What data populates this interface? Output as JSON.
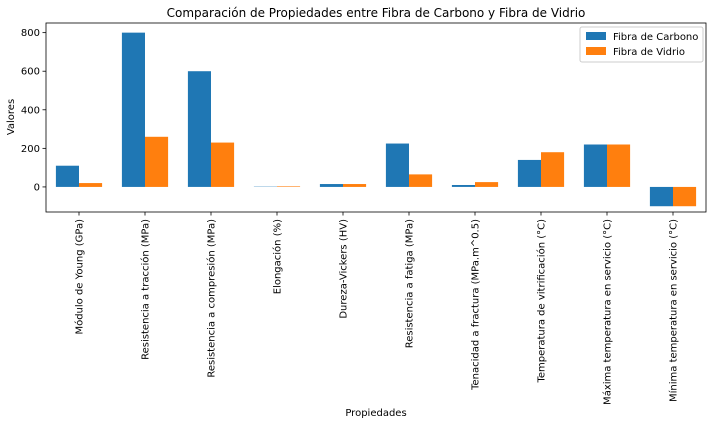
{
  "chart_data": {
    "type": "bar",
    "title": "Comparación de Propiedades entre Fibra de Carbono y Fibra de Vidrio",
    "xlabel": "Propiedades",
    "ylabel": "Valores",
    "ylim": [
      -130,
      850
    ],
    "yticks": [
      0,
      200,
      400,
      600,
      800
    ],
    "categories": [
      "Módulo de Young (GPa)",
      "Resistencia a tracción (MPa)",
      "Resistencia a compresión (MPa)",
      "Elongación (%)",
      "Dureza-Vickers (HV)",
      "Resistencia a fatiga (MPa)",
      "Tenacidad a fractura (MPa.m^0.5)",
      "Temperatura de vitrificación (°C)",
      "Máxima temperatura en servicio (°C)",
      "Mínima temperatura en servicio (°C)"
    ],
    "series": [
      {
        "name": "Fibra de Carbono",
        "color": "#1f77b4",
        "values": [
          110,
          800,
          600,
          1.5,
          15,
          225,
          10,
          140,
          220,
          -100
        ]
      },
      {
        "name": "Fibra de Vidrio",
        "color": "#ff7f0e",
        "values": [
          20,
          260,
          230,
          3,
          15,
          65,
          25,
          180,
          220,
          -100
        ]
      }
    ],
    "grid": false,
    "legend_position": "top-right"
  }
}
